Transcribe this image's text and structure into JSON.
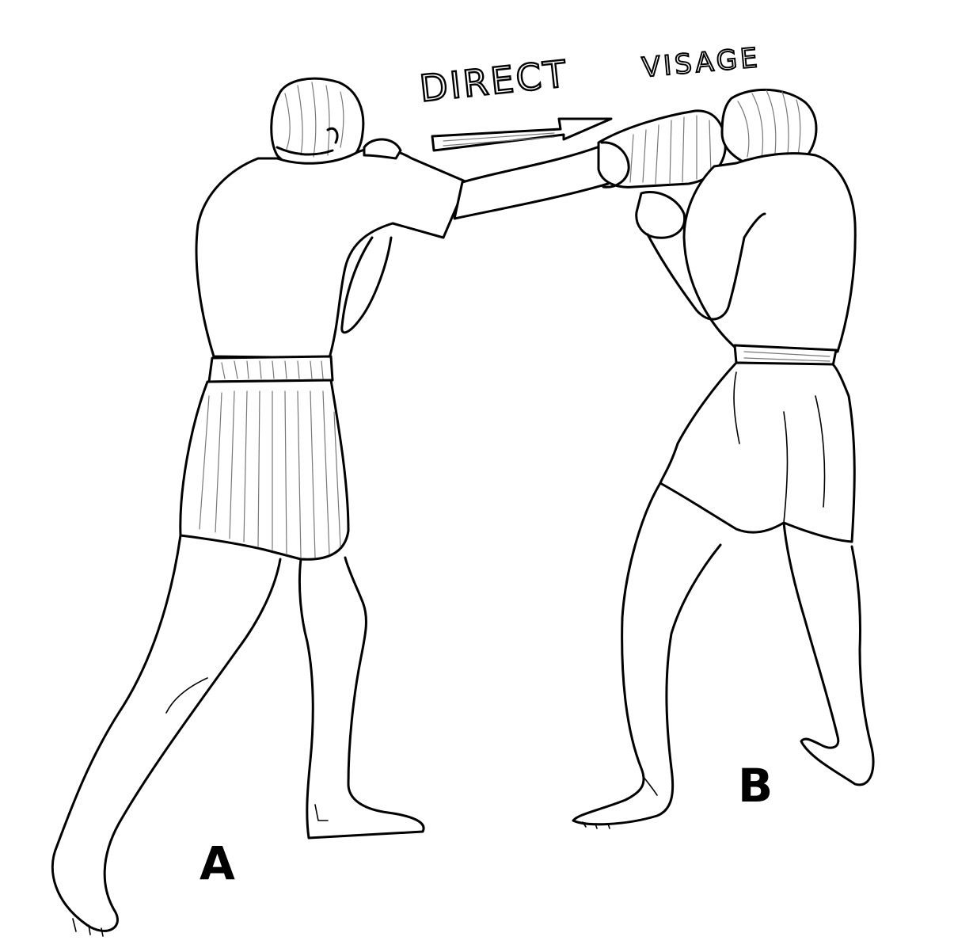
{
  "illustration": {
    "title_word_1": "DIRECT",
    "title_word_2": "VISAGE",
    "boxer_a_label": "A",
    "boxer_b_label": "B",
    "ink_color": "#000000",
    "background_color": "#ffffff"
  }
}
